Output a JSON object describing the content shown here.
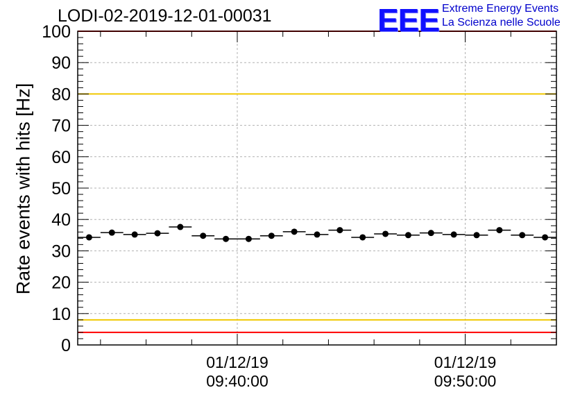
{
  "header": {
    "title": "LODI-02-2019-12-01-00031",
    "logo_text": "EEE",
    "logo_line1": "Extreme Energy Events",
    "logo_line2": "La Scienza nelle Scuole"
  },
  "chart_data": {
    "type": "scatter",
    "title": "LODI-02-2019-12-01-00031",
    "xlabel": "",
    "ylabel": "Rate events with hits [Hz]",
    "ylim": [
      0,
      100
    ],
    "yticks": [
      0,
      10,
      20,
      30,
      40,
      50,
      60,
      70,
      80,
      90,
      100
    ],
    "xlim": [
      "09:33:00",
      "09:54:00"
    ],
    "xtick_labels": [
      {
        "at": "09:40:00",
        "date": "01/12/19",
        "time": "09:40:00"
      },
      {
        "at": "09:50:00",
        "date": "01/12/19",
        "time": "09:50:00"
      }
    ],
    "grid": true,
    "bin_width_minutes": 1,
    "series": [
      {
        "marker": "filled-circle-with-horizontal-error-bar",
        "color": "#000000",
        "x": [
          "09:33:30",
          "09:34:30",
          "09:35:30",
          "09:36:30",
          "09:37:30",
          "09:38:30",
          "09:39:30",
          "09:40:30",
          "09:41:30",
          "09:42:30",
          "09:43:30",
          "09:44:30",
          "09:45:30",
          "09:46:30",
          "09:47:30",
          "09:48:30",
          "09:49:30",
          "09:50:30",
          "09:51:30",
          "09:52:30",
          "09:53:30"
        ],
        "values": [
          34.3,
          35.8,
          35.2,
          35.6,
          37.6,
          34.8,
          33.8,
          33.8,
          34.8,
          36.1,
          35.2,
          36.6,
          34.3,
          35.4,
          35.0,
          35.7,
          35.2,
          35.0,
          36.6,
          35.0,
          34.3
        ]
      }
    ],
    "reference_lines": [
      {
        "y": 100,
        "color": "#ff0000"
      },
      {
        "y": 80,
        "color": "#f0c800"
      },
      {
        "y": 8,
        "color": "#f0c800"
      },
      {
        "y": 4,
        "color": "#ff0000"
      }
    ]
  }
}
